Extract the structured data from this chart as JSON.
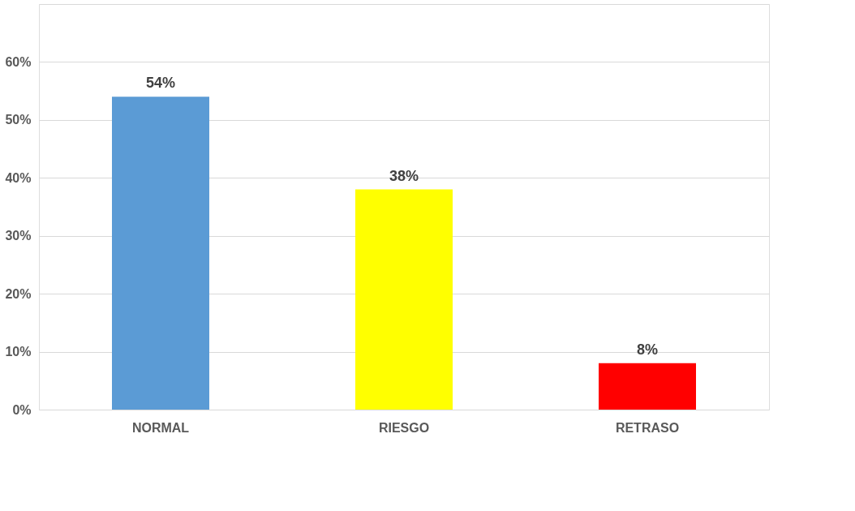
{
  "chart_data": {
    "type": "bar",
    "categories": [
      "NORMAL",
      "RIESGO",
      "RETRASO"
    ],
    "values": [
      54,
      38,
      8
    ],
    "colors": [
      "#5b9bd5",
      "#ffff00",
      "#ff0000"
    ],
    "value_labels": [
      "54%",
      "38%",
      "8%"
    ],
    "ylim": [
      0,
      70
    ],
    "yticks": [
      {
        "value": 0,
        "label": "0%"
      },
      {
        "value": 10,
        "label": "10%"
      },
      {
        "value": 20,
        "label": "20%"
      },
      {
        "value": 30,
        "label": "30%"
      },
      {
        "value": 40,
        "label": "40%"
      },
      {
        "value": 50,
        "label": "50%"
      },
      {
        "value": 60,
        "label": "60%"
      },
      {
        "value": 70,
        "label": null
      }
    ],
    "grid": "y",
    "legend": false
  }
}
